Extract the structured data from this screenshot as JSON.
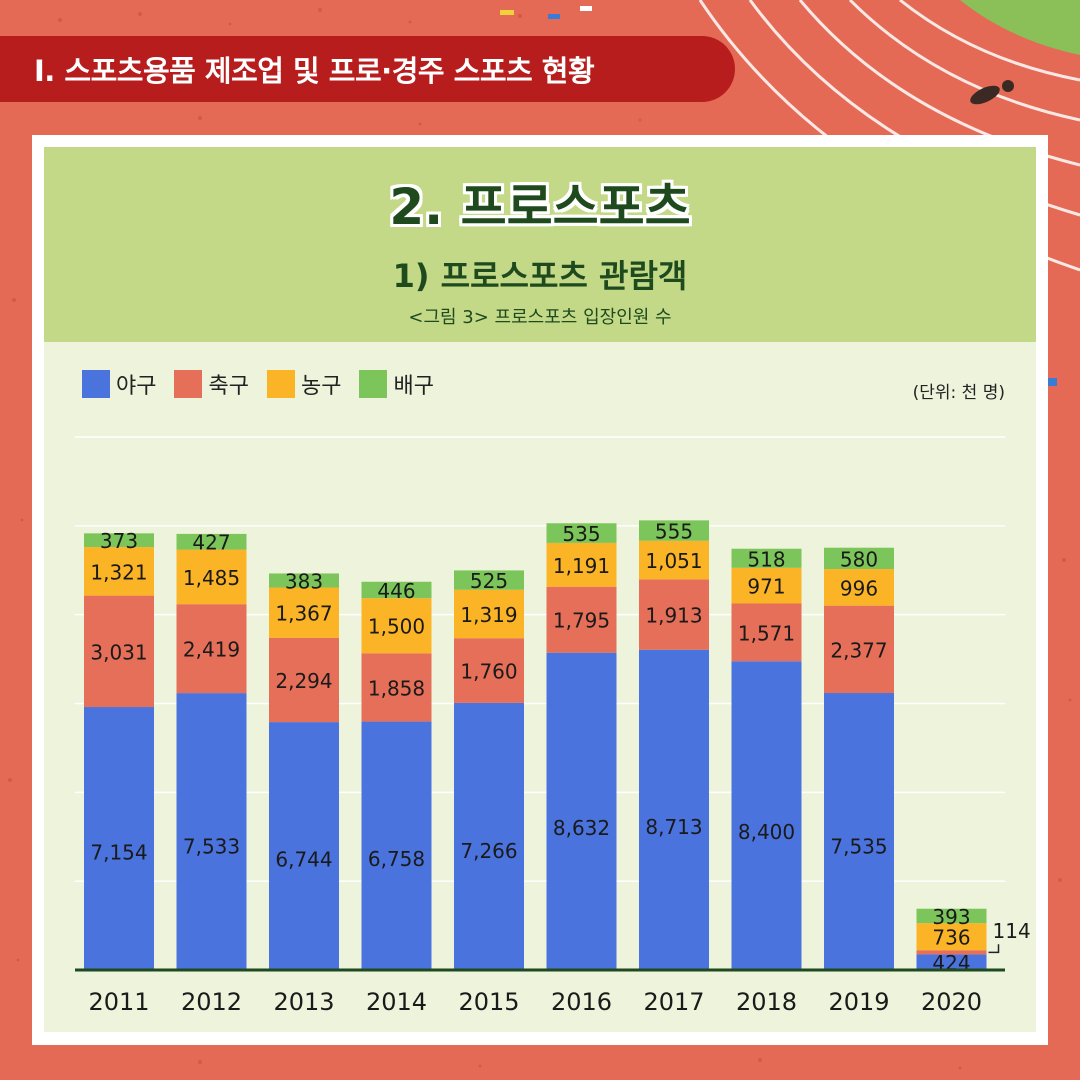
{
  "header": {
    "label": "Ⅰ. 스포츠용품 제조업 및 프로·경주 스포츠 현황"
  },
  "titles": {
    "main": "2. 프로스포츠",
    "sub": "1) 프로스포츠 관람객",
    "caption": "<그림 3> 프로스포츠 입장인원 수"
  },
  "unit": "(단위: 천 명)",
  "colors": {
    "background": "#e56a55",
    "header": "#b81d1d",
    "title_band": "#c3d987",
    "plot_band": "#eef3dc",
    "title_text": "#1e4a1e",
    "baseball": "#4a73de",
    "soccer": "#e56f58",
    "basketball": "#fbb426",
    "volleyball": "#7cc55a"
  },
  "chart_data": {
    "type": "bar",
    "stacked": true,
    "categories": [
      "2011",
      "2012",
      "2013",
      "2014",
      "2015",
      "2016",
      "2017",
      "2018",
      "2019",
      "2020"
    ],
    "series": [
      {
        "name": "야구",
        "color": "#4a73de",
        "values": [
          7154,
          7533,
          6744,
          6758,
          7266,
          8632,
          8713,
          8400,
          7535,
          424
        ],
        "labels": [
          "7,154",
          "7,533",
          "6,744",
          "6,758",
          "7,266",
          "8,632",
          "8,713",
          "8,400",
          "7,535",
          "424"
        ]
      },
      {
        "name": "축구",
        "color": "#e56f58",
        "values": [
          3031,
          2419,
          2294,
          1858,
          1760,
          1795,
          1913,
          1571,
          2377,
          114
        ],
        "labels": [
          "3,031",
          "2,419",
          "2,294",
          "1,858",
          "1,760",
          "1,795",
          "1,913",
          "1,571",
          "2,377",
          "114"
        ]
      },
      {
        "name": "농구",
        "color": "#fbb426",
        "values": [
          1321,
          1485,
          1367,
          1500,
          1319,
          1191,
          1051,
          971,
          996,
          736
        ],
        "labels": [
          "1,321",
          "1,485",
          "1,367",
          "1,500",
          "1,319",
          "1,191",
          "1,051",
          "971",
          "996",
          "736"
        ]
      },
      {
        "name": "배구",
        "color": "#7cc55a",
        "values": [
          373,
          427,
          383,
          446,
          525,
          535,
          555,
          518,
          580,
          393
        ],
        "labels": [
          "373",
          "427",
          "383",
          "446",
          "525",
          "535",
          "555",
          "518",
          "580",
          "393"
        ]
      }
    ],
    "ylim": [
      0,
      14500
    ],
    "grid": true,
    "legend_position": "top-left"
  }
}
